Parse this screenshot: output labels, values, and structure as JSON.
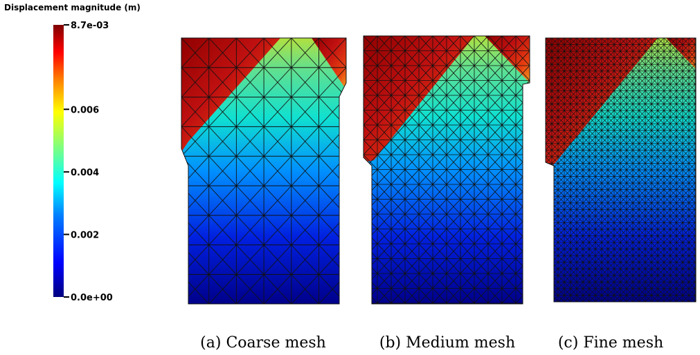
{
  "colorbar": {
    "title": "Displacement magnitude (m)",
    "range": [
      0,
      0.0087
    ],
    "ticks": [
      {
        "value": 0.0087,
        "label": "8.7e-03"
      },
      0.006,
      0.004,
      0.002,
      {
        "value": 0,
        "label": "0.0e+00"
      }
    ]
  },
  "captions": [
    "(a) Coarse mesh",
    "(b) Medium mesh",
    "(c) Fine mesh"
  ]
}
